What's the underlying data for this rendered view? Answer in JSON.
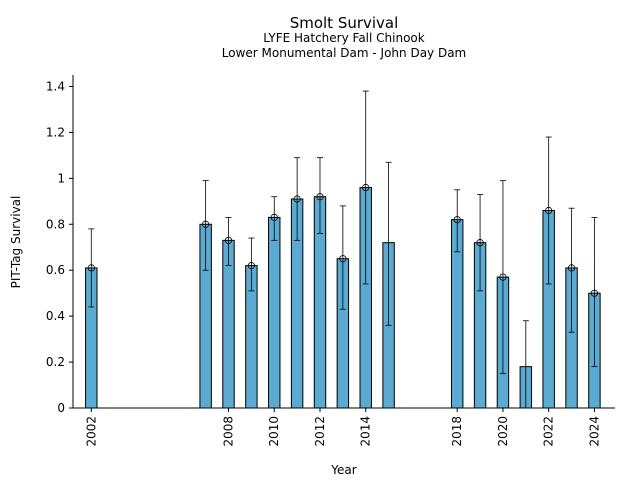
{
  "chart_data": {
    "type": "bar",
    "title": "Smolt Survival",
    "subtitle": [
      "LYFE Hatchery Fall Chinook",
      "Lower Monumental Dam - John Day Dam"
    ],
    "xlabel": "Year",
    "ylabel": "PIT-Tag Survival",
    "ylim": [
      0,
      1.45
    ],
    "xlim": [
      2001.2,
      2024.9
    ],
    "yticks": [
      0,
      0.2,
      0.4,
      0.6,
      0.8,
      1,
      1.2,
      1.4
    ],
    "ytick_labels": [
      "0",
      "0.2",
      "0.4",
      "0.6",
      "0.8",
      "1",
      "1.2",
      "1.4"
    ],
    "xticks": [
      2002,
      2008,
      2010,
      2012,
      2014,
      2018,
      2020,
      2022,
      2024
    ],
    "xtick_labels": [
      "2002",
      "2008",
      "2010",
      "2012",
      "2014",
      "2018",
      "2020",
      "2022",
      "2024"
    ],
    "grid": false,
    "colors": {
      "bar": "#5aaad2",
      "edge": "#000000"
    },
    "points": [
      {
        "x": 2002,
        "y": 0.61,
        "lower": 0.44,
        "upper": 0.78,
        "marker": true
      },
      {
        "x": 2007,
        "y": 0.8,
        "lower": 0.6,
        "upper": 0.99,
        "marker": true
      },
      {
        "x": 2008,
        "y": 0.73,
        "lower": 0.62,
        "upper": 0.83,
        "marker": true
      },
      {
        "x": 2009,
        "y": 0.62,
        "lower": 0.51,
        "upper": 0.74,
        "marker": true
      },
      {
        "x": 2010,
        "y": 0.83,
        "lower": 0.73,
        "upper": 0.92,
        "marker": true
      },
      {
        "x": 2011,
        "y": 0.91,
        "lower": 0.73,
        "upper": 1.09,
        "marker": true
      },
      {
        "x": 2012,
        "y": 0.92,
        "lower": 0.76,
        "upper": 1.09,
        "marker": true
      },
      {
        "x": 2013,
        "y": 0.65,
        "lower": 0.43,
        "upper": 0.88,
        "marker": true
      },
      {
        "x": 2014,
        "y": 0.96,
        "lower": 0.54,
        "upper": 1.38,
        "marker": true
      },
      {
        "x": 2015,
        "y": 0.72,
        "lower": 0.36,
        "upper": 1.07,
        "marker": false
      },
      {
        "x": 2018,
        "y": 0.82,
        "lower": 0.68,
        "upper": 0.95,
        "marker": true
      },
      {
        "x": 2019,
        "y": 0.72,
        "lower": 0.51,
        "upper": 0.93,
        "marker": true
      },
      {
        "x": 2020,
        "y": 0.57,
        "lower": 0.15,
        "upper": 0.99,
        "marker": true
      },
      {
        "x": 2021,
        "y": 0.18,
        "lower": null,
        "upper": 0.38,
        "marker": false
      },
      {
        "x": 2022,
        "y": 0.86,
        "lower": 0.54,
        "upper": 1.18,
        "marker": true
      },
      {
        "x": 2023,
        "y": 0.61,
        "lower": 0.33,
        "upper": 0.87,
        "marker": true
      },
      {
        "x": 2024,
        "y": 0.5,
        "lower": 0.18,
        "upper": 0.83,
        "marker": true
      }
    ]
  }
}
